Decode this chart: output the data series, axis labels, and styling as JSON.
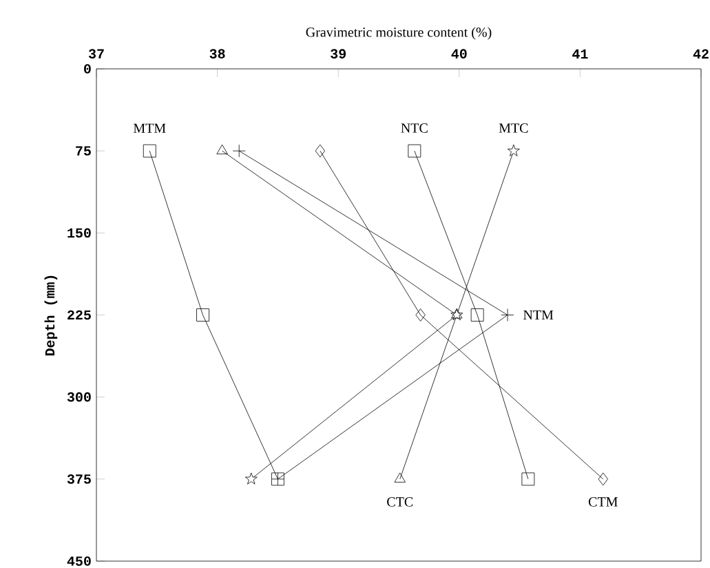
{
  "chart_data": {
    "type": "line",
    "xlabel": "Gravimetric moisture content (%)",
    "ylabel": "Depth (mm)",
    "xlim": [
      37,
      42
    ],
    "xticks": [
      37,
      38,
      39,
      40,
      41,
      42
    ],
    "ylim": [
      450,
      0
    ],
    "yticks": [
      0,
      75,
      150,
      225,
      300,
      375,
      450
    ],
    "grid": false,
    "line_style": "solid",
    "series": [
      {
        "color": "#000000",
        "marker": "square",
        "x": [
          37.44,
          37.88,
          38.5
        ],
        "values": [
          75,
          225,
          375
        ]
      },
      {
        "color": "#000000",
        "marker": "square",
        "x": [
          39.63,
          40.15,
          40.57
        ],
        "values": [
          75,
          225,
          375
        ]
      },
      {
        "color": "#000000",
        "marker": "star",
        "x": [
          40.45,
          39.98,
          38.28
        ],
        "values": [
          75,
          225,
          375
        ]
      },
      {
        "color": "#000000",
        "marker": "cross",
        "x": [
          38.18,
          40.4,
          38.5
        ],
        "values": [
          75,
          225,
          375
        ]
      },
      {
        "color": "#000000",
        "marker": "triangle",
        "x": [
          38.04,
          39.98,
          39.51
        ],
        "values": [
          75,
          225,
          375
        ]
      },
      {
        "color": "#000000",
        "marker": "diamond",
        "x": [
          38.85,
          39.68,
          41.19
        ],
        "values": [
          75,
          225,
          375
        ]
      }
    ],
    "annotations": [
      {
        "text": "MTM",
        "x": 37.44,
        "y": 75
      },
      {
        "text": "NTC",
        "x": 39.63,
        "y": 75
      },
      {
        "text": "MTC",
        "x": 40.45,
        "y": 75
      },
      {
        "text": "NTM",
        "x": 40.4,
        "y": 225
      },
      {
        "text": "CTC",
        "x": 39.51,
        "y": 375
      },
      {
        "text": "CTM",
        "x": 41.19,
        "y": 375
      }
    ]
  }
}
